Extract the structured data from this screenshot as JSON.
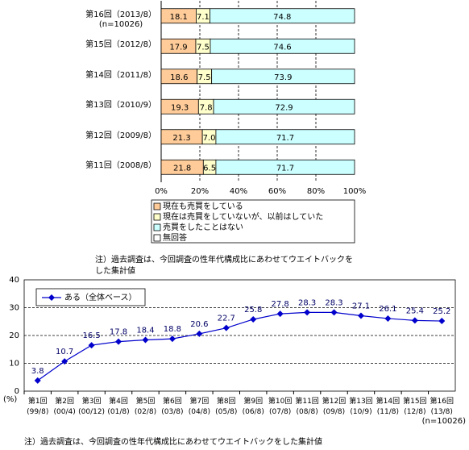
{
  "chart_data": [
    {
      "type": "stacked_bar_h",
      "categories": [
        "第16回（2013/8）\n(n=10026)",
        "第15回（2012/8）",
        "第14回（2011/8）",
        "第13回（2010/9）",
        "第12回（2009/8）",
        "第11回（2008/8）"
      ],
      "series": [
        {
          "name": "現在も売買をしている",
          "color": "#ffcc99",
          "values": [
            18.1,
            17.9,
            18.6,
            19.3,
            21.3,
            21.8
          ],
          "value_labels": [
            "18.1",
            "17.9",
            "18.6",
            "19.3",
            "21.3",
            "21.8"
          ]
        },
        {
          "name": "現在は売買をしていないが、以前はしていた",
          "color": "#ffffcc",
          "values": [
            7.1,
            7.5,
            7.5,
            7.8,
            7.0,
            6.5
          ],
          "value_labels": [
            "7.1",
            "7.5",
            "7.5",
            "7.8",
            "7.0",
            "6.5"
          ]
        },
        {
          "name": "売買をしたことはない",
          "color": "#ccffff",
          "values": [
            74.8,
            74.6,
            73.9,
            72.9,
            71.7,
            71.7
          ],
          "value_labels": [
            "74.8",
            "74.6",
            "73.9",
            "72.9",
            "71.7",
            "71.7"
          ]
        },
        {
          "name": "無回答",
          "color": "#ffffff",
          "values": [
            0,
            0,
            0,
            0,
            0,
            0
          ]
        }
      ],
      "xlim": [
        0,
        100
      ],
      "xticks": [
        {
          "value": 0,
          "label": "0%"
        },
        {
          "value": 20,
          "label": "20%"
        },
        {
          "value": 40,
          "label": "40%"
        },
        {
          "value": 60,
          "label": "60%"
        },
        {
          "value": 80,
          "label": "80%"
        },
        {
          "value": 100,
          "label": "100%"
        }
      ],
      "grid": true,
      "note": [
        "注）過去調査は、今回調査の性年代構成比にあわせてウエイトバックを",
        "した集計値"
      ]
    },
    {
      "type": "line",
      "categories": [
        "第1回\n(99/8)",
        "第2回\n(00/4)",
        "第3回\n(00/12)",
        "第4回\n(01/8)",
        "第5回\n(02/8)",
        "第6回\n(03/8)",
        "第7回\n(04/8)",
        "第8回\n(05/8)",
        "第9回\n(06/8)",
        "第10回\n(07/8)",
        "第11回\n(08/8)",
        "第12回\n(09/8)",
        "第13回\n(10/9)",
        "第14回\n(11/8)",
        "第15回\n(12/8)",
        "第16回\n(13/8)"
      ],
      "series": [
        {
          "name": "ある（全体ベース）",
          "color": "#0000cc",
          "values": [
            3.8,
            10.7,
            16.5,
            17.8,
            18.4,
            18.8,
            20.6,
            22.7,
            25.8,
            27.8,
            28.3,
            28.3,
            27.1,
            26.1,
            25.4,
            25.2
          ]
        }
      ],
      "ylim": [
        0,
        40
      ],
      "yticks": [
        0,
        10,
        20,
        30,
        40
      ],
      "grid": true,
      "y_unit": "(%)",
      "sample_size": "(n=10026)",
      "note": "注）過去調査は、今回調査の性年代構成比にあわせてウエイトバックをした集計値"
    }
  ]
}
